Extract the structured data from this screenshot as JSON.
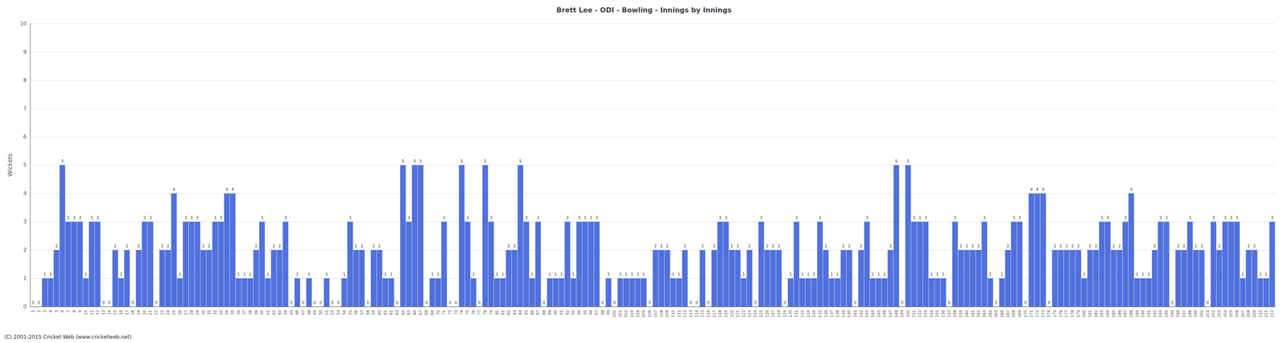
{
  "chart_data": {
    "type": "bar",
    "title": "Brett Lee - ODI - Bowling - Innings by Innings",
    "ylabel": "Wickets",
    "annotations": [
      "(C) 2001-2015 Cricket Web (www.cricketweb.net)"
    ],
    "categories": [
      "1",
      "2",
      "3",
      "4",
      "5",
      "6",
      "7",
      "8",
      "9",
      "10",
      "11",
      "12",
      "13",
      "14",
      "15",
      "16",
      "17",
      "18",
      "19",
      "20",
      "21",
      "22",
      "23",
      "24",
      "25",
      "26",
      "27",
      "28",
      "29",
      "30",
      "31",
      "32",
      "33",
      "34",
      "35",
      "36",
      "37",
      "38",
      "39",
      "40",
      "41",
      "42",
      "43",
      "44",
      "45",
      "46",
      "47",
      "48",
      "49",
      "50",
      "51",
      "52",
      "53",
      "54",
      "55",
      "56",
      "57",
      "58",
      "59",
      "60",
      "61",
      "62",
      "63",
      "64",
      "65",
      "66",
      "67",
      "68",
      "69",
      "70",
      "71",
      "72",
      "73",
      "74",
      "75",
      "76",
      "77",
      "78",
      "79",
      "80",
      "81",
      "82",
      "83",
      "84",
      "85",
      "86",
      "87",
      "88",
      "89",
      "90",
      "91",
      "92",
      "93",
      "94",
      "95",
      "96",
      "97",
      "98",
      "99",
      "100",
      "101",
      "102",
      "103",
      "104",
      "105",
      "106",
      "107",
      "108",
      "109",
      "110",
      "111",
      "112",
      "113",
      "114",
      "115",
      "116",
      "117",
      "118",
      "119",
      "120",
      "121",
      "122",
      "123",
      "124",
      "125",
      "126",
      "127",
      "128",
      "129",
      "130",
      "131",
      "132",
      "133",
      "134",
      "135",
      "136",
      "137",
      "138",
      "139",
      "140",
      "141",
      "142",
      "143",
      "144",
      "145",
      "146",
      "147",
      "148",
      "149",
      "150",
      "151",
      "152",
      "153",
      "154",
      "155",
      "156",
      "157",
      "158",
      "159",
      "160",
      "161",
      "162",
      "163",
      "164",
      "165",
      "166",
      "167",
      "168",
      "169",
      "170",
      "171",
      "172",
      "173",
      "174",
      "175",
      "176",
      "177",
      "178",
      "179",
      "180",
      "181",
      "182",
      "183",
      "184",
      "185",
      "186",
      "187",
      "188",
      "189",
      "190",
      "191",
      "192",
      "193",
      "194",
      "195",
      "196",
      "197",
      "198",
      "199",
      "200",
      "201",
      "202",
      "203",
      "204",
      "205",
      "206",
      "207",
      "208",
      "209",
      "210",
      "211",
      "212"
    ],
    "values": [
      0,
      0,
      1,
      1,
      2,
      5,
      3,
      3,
      3,
      1,
      3,
      3,
      0,
      0,
      2,
      1,
      2,
      0,
      2,
      3,
      3,
      0,
      2,
      2,
      4,
      1,
      3,
      3,
      3,
      2,
      2,
      3,
      3,
      4,
      4,
      1,
      1,
      1,
      2,
      3,
      1,
      2,
      2,
      3,
      0,
      1,
      0,
      1,
      0,
      0,
      1,
      0,
      0,
      1,
      3,
      2,
      2,
      0,
      2,
      2,
      1,
      1,
      0,
      5,
      3,
      5,
      5,
      0,
      1,
      1,
      3,
      0,
      0,
      5,
      3,
      1,
      0,
      5,
      3,
      1,
      1,
      2,
      2,
      5,
      3,
      1,
      3,
      0,
      1,
      1,
      1,
      3,
      1,
      3,
      3,
      3,
      3,
      0,
      1,
      0,
      1,
      1,
      1,
      1,
      1,
      0,
      2,
      2,
      2,
      1,
      1,
      2,
      0,
      0,
      2,
      0,
      2,
      3,
      3,
      2,
      2,
      1,
      2,
      0,
      3,
      2,
      2,
      2,
      0,
      1,
      3,
      1,
      1,
      1,
      3,
      2,
      1,
      1,
      2,
      2,
      0,
      2,
      3,
      1,
      1,
      1,
      2,
      5,
      0,
      5,
      3,
      3,
      3,
      1,
      1,
      1,
      0,
      3,
      2,
      2,
      2,
      2,
      3,
      1,
      0,
      1,
      2,
      3,
      3,
      0,
      4,
      4,
      4,
      0,
      2,
      2,
      2,
      2,
      2,
      1,
      2,
      2,
      3,
      3,
      2,
      2,
      3,
      4,
      1,
      1,
      1,
      2,
      3,
      3,
      0,
      2,
      2,
      3,
      2,
      2,
      0,
      3,
      2,
      3,
      3,
      3,
      1,
      2,
      2,
      1,
      1,
      3
    ],
    "ylim": [
      0,
      10
    ],
    "yticks": [
      0,
      1,
      2,
      3,
      4,
      5,
      6,
      7,
      8,
      9,
      10
    ],
    "grid": true,
    "data_labels": true
  }
}
